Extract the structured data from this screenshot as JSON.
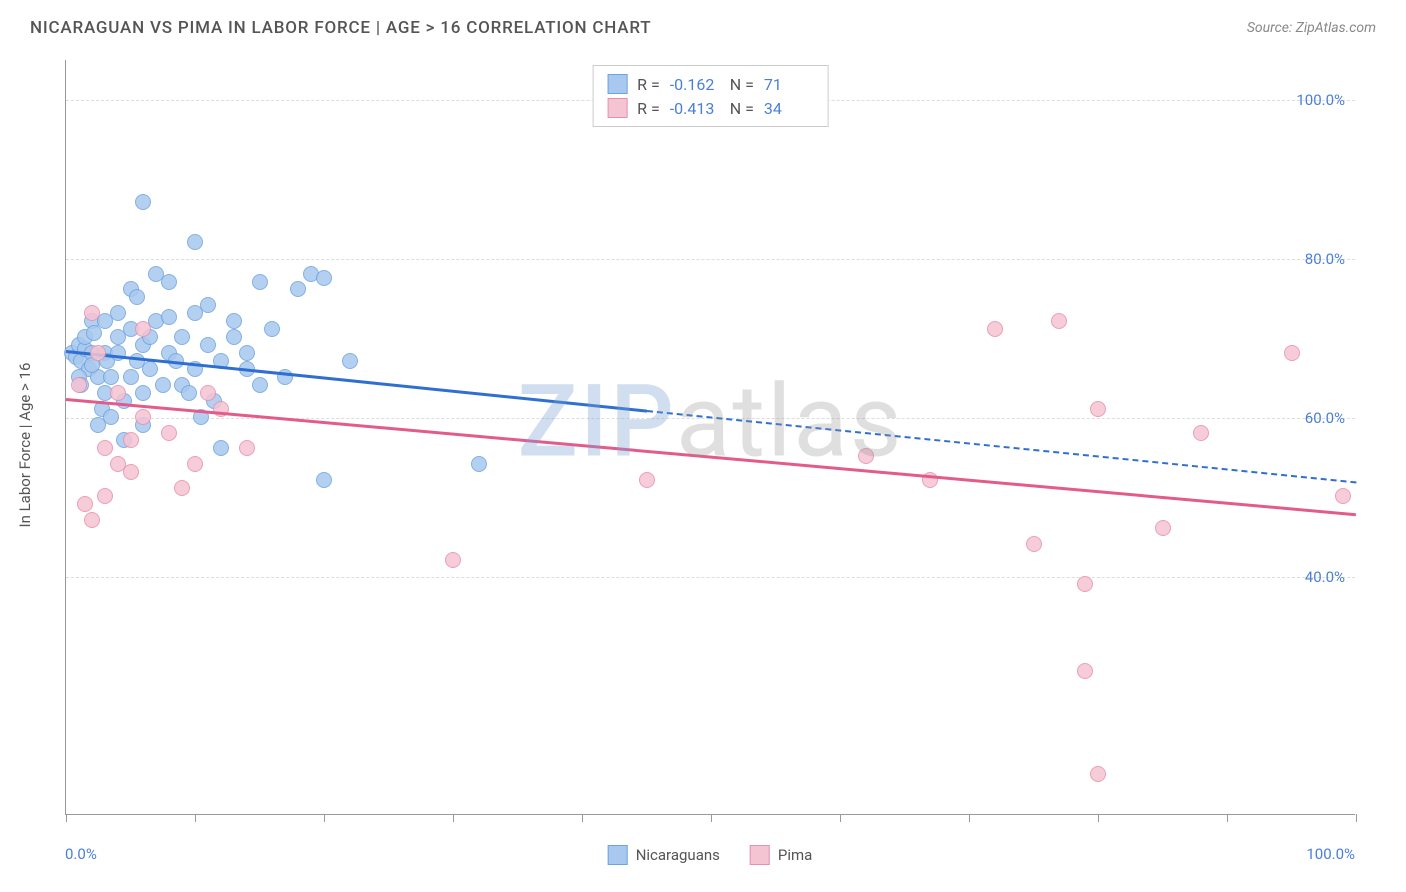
{
  "header": {
    "title": "NICARAGUAN VS PIMA IN LABOR FORCE | AGE > 16 CORRELATION CHART",
    "source_label": "Source: ",
    "source_name": "ZipAtlas.com"
  },
  "chart": {
    "type": "scatter",
    "y_axis_title": "In Labor Force | Age > 16",
    "background_color": "#ffffff",
    "grid_color": "#dddddd",
    "axis_color": "#999999",
    "tick_label_color": "#4a7fd8",
    "xlim": [
      0,
      100
    ],
    "ylim": [
      10,
      105
    ],
    "x_tick_positions": [
      0,
      10,
      20,
      30,
      40,
      50,
      60,
      70,
      80,
      90,
      100
    ],
    "x_labels": {
      "min": "0.0%",
      "max": "100.0%"
    },
    "y_gridlines": [
      {
        "value": 40,
        "label": "40.0%"
      },
      {
        "value": 60,
        "label": "60.0%"
      },
      {
        "value": 80,
        "label": "80.0%"
      },
      {
        "value": 100,
        "label": "100.0%"
      }
    ],
    "point_radius": 8,
    "point_opacity_fill": 0.35,
    "point_opacity_stroke": 0.9,
    "series": [
      {
        "name": "Nicaraguans",
        "fill_color": "#a8c8ef",
        "stroke_color": "#6fa3e0",
        "line_color": "#2e6fd0",
        "R": "-0.162",
        "N": "71",
        "trend": {
          "x1": 0,
          "y1": 68.5,
          "x2": 45,
          "y2": 61,
          "dash_to_x": 100,
          "dash_to_y": 52
        },
        "points": [
          [
            0.5,
            68
          ],
          [
            0.8,
            67.5
          ],
          [
            1,
            69
          ],
          [
            1.2,
            67
          ],
          [
            1.5,
            68.5
          ],
          [
            1.8,
            66
          ],
          [
            1,
            65
          ],
          [
            1.5,
            70
          ],
          [
            2,
            68
          ],
          [
            1.2,
            64
          ],
          [
            2,
            72
          ],
          [
            2.5,
            65
          ],
          [
            3,
            63
          ],
          [
            2.2,
            70.5
          ],
          [
            3,
            68
          ],
          [
            2,
            66.5
          ],
          [
            3.2,
            67
          ],
          [
            2.8,
            61
          ],
          [
            3.5,
            65
          ],
          [
            2.5,
            59
          ],
          [
            4,
            68
          ],
          [
            3,
            72
          ],
          [
            4,
            70
          ],
          [
            3.5,
            60
          ],
          [
            4.5,
            62
          ],
          [
            5,
            65
          ],
          [
            4,
            73
          ],
          [
            5,
            71
          ],
          [
            5.5,
            67
          ],
          [
            4.5,
            57
          ],
          [
            5,
            76
          ],
          [
            6,
            69
          ],
          [
            6,
            63
          ],
          [
            5.5,
            75
          ],
          [
            6.5,
            66
          ],
          [
            7,
            72
          ],
          [
            6,
            59
          ],
          [
            7,
            78
          ],
          [
            6.5,
            70
          ],
          [
            8,
            68
          ],
          [
            7.5,
            64
          ],
          [
            8,
            72.5
          ],
          [
            8.5,
            67
          ],
          [
            9,
            64
          ],
          [
            8,
            77
          ],
          [
            9,
            70
          ],
          [
            10,
            66
          ],
          [
            9.5,
            63
          ],
          [
            10,
            73
          ],
          [
            11,
            69
          ],
          [
            10.5,
            60
          ],
          [
            11,
            74
          ],
          [
            12,
            67
          ],
          [
            11.5,
            62
          ],
          [
            13,
            70
          ],
          [
            12,
            56
          ],
          [
            14,
            66
          ],
          [
            13,
            72
          ],
          [
            15,
            64
          ],
          [
            14,
            68
          ],
          [
            16,
            71
          ],
          [
            15,
            77
          ],
          [
            17,
            65
          ],
          [
            18,
            76
          ],
          [
            19,
            78
          ],
          [
            20,
            77.5
          ],
          [
            22,
            67
          ],
          [
            20,
            52
          ],
          [
            6,
            87
          ],
          [
            10,
            82
          ],
          [
            32,
            54
          ]
        ]
      },
      {
        "name": "Pima",
        "fill_color": "#f5c4d3",
        "stroke_color": "#e88fae",
        "line_color": "#e35b8a",
        "R": "-0.413",
        "N": "34",
        "trend": {
          "x1": 0,
          "y1": 62.5,
          "x2": 100,
          "y2": 48
        },
        "points": [
          [
            1,
            64
          ],
          [
            2,
            73
          ],
          [
            1.5,
            49
          ],
          [
            3,
            50
          ],
          [
            2,
            47
          ],
          [
            4,
            54
          ],
          [
            2.5,
            68
          ],
          [
            3,
            56
          ],
          [
            5,
            57
          ],
          [
            4,
            63
          ],
          [
            6,
            60
          ],
          [
            5,
            53
          ],
          [
            8,
            58
          ],
          [
            10,
            54
          ],
          [
            6,
            71
          ],
          [
            12,
            61
          ],
          [
            9,
            51
          ],
          [
            14,
            56
          ],
          [
            11,
            63
          ],
          [
            30,
            42
          ],
          [
            45,
            52
          ],
          [
            62,
            55
          ],
          [
            67,
            52
          ],
          [
            72,
            71
          ],
          [
            75,
            44
          ],
          [
            77,
            72
          ],
          [
            79,
            39
          ],
          [
            80,
            61
          ],
          [
            79,
            28
          ],
          [
            85,
            46
          ],
          [
            80,
            15
          ],
          [
            88,
            58
          ],
          [
            95,
            68
          ],
          [
            99,
            50
          ]
        ]
      }
    ],
    "legend_stats": {
      "R_label": "R =",
      "N_label": "N ="
    },
    "bottom_legend": {
      "series1_label": "Nicaraguans",
      "series2_label": "Pima"
    },
    "watermark": {
      "part1": "ZIP",
      "part2": "atlas"
    }
  }
}
